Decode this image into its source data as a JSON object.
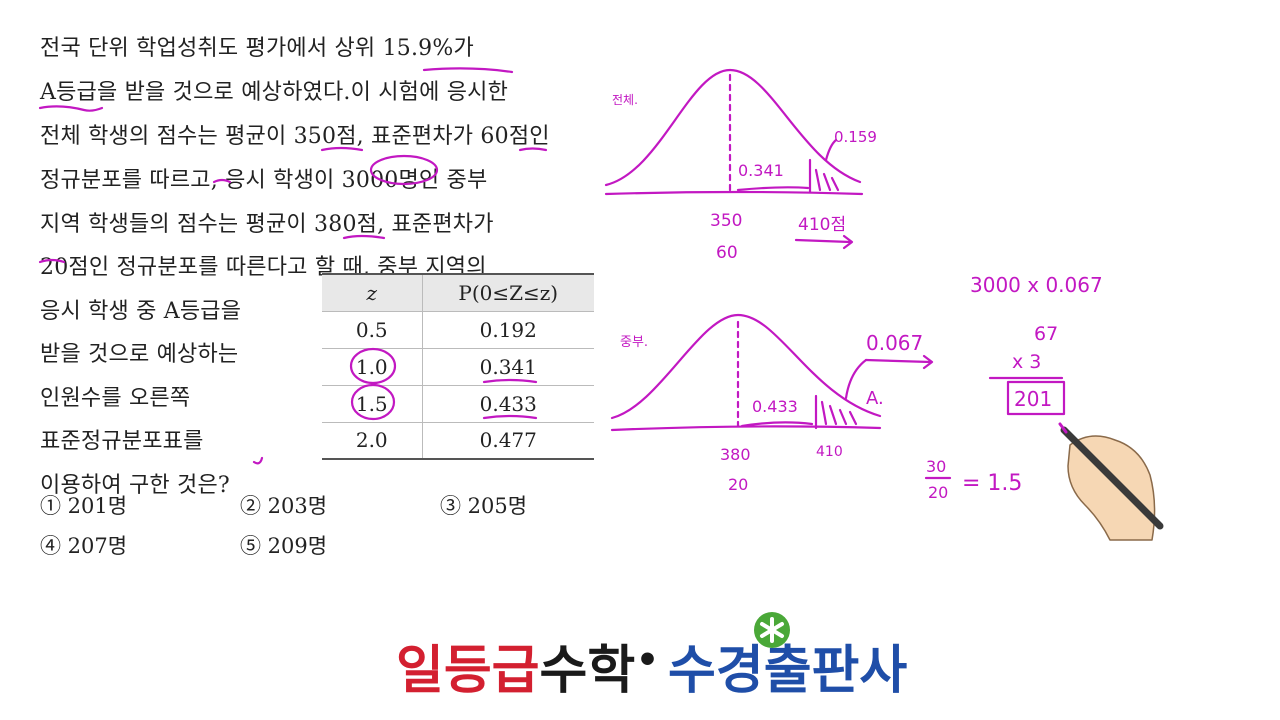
{
  "problem": {
    "lines": [
      "전국 단위 학업성취도 평가에서 상위 15.9%가",
      "A등급을 받을 것으로 예상하였다.이 시험에 응시한",
      "전체 학생의 점수는 평균이 350점, 표준편차가 60점인",
      "정규분포를 따르고, 응시 학생이 3000명인 중부",
      "지역 학생들의 점수는 평균이 380점, 표준편차가",
      "20점인 정규분포를 따른다고 할 때, 중부 지역의",
      "응시 학생 중 A등급을",
      "받을 것으로 예상하는",
      "인원수를 오른쪽",
      "표준정규분포표를",
      "이용하여 구한 것은?"
    ]
  },
  "table": {
    "headers": [
      "z",
      "P(0≤Z≤z)"
    ],
    "rows": [
      [
        "0.5",
        "0.192"
      ],
      [
        "1.0",
        "0.341"
      ],
      [
        "1.5",
        "0.433"
      ],
      [
        "2.0",
        "0.477"
      ]
    ]
  },
  "choices": [
    "① 201명",
    "② 203명",
    "③ 205명",
    "④ 207명",
    "⑤ 209명"
  ],
  "handwriting": {
    "graph1": {
      "label": "전체.",
      "mean": "350",
      "sd": "60",
      "area": "0.341",
      "tail": "0.159",
      "cut": "410점"
    },
    "graph2": {
      "label": "중부.",
      "mean": "380",
      "sd": "20",
      "area": "0.433",
      "tail": "0.067",
      "cut": "410",
      "grade": "A."
    },
    "calc": {
      "expr": "3000 x 0.067",
      "top": "67",
      "mul": "x   3",
      "result": "201",
      "frac_num": "30",
      "frac_den": "20",
      "frac_eq": "= 1.5"
    }
  },
  "logo": {
    "part1": "일등급",
    "part2": "수학",
    "dot": "•",
    "part3": "수경",
    "part4": "출판사",
    "colors": {
      "red": "#d32030",
      "black": "#1a1a1a",
      "blue": "#1f4ea8",
      "green": "#4aa838"
    }
  },
  "colors": {
    "ink": "#c218c2",
    "text": "#222222"
  }
}
